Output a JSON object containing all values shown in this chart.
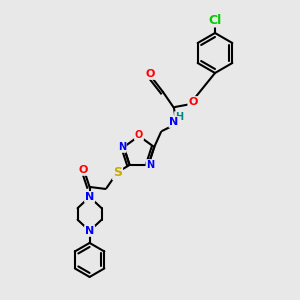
{
  "bg_color": "#e8e8e8",
  "atom_colors": {
    "N": "#0000ff",
    "O": "#ff0000",
    "S": "#ccaa00",
    "Cl": "#00cc00",
    "H": "#008888",
    "C": "#000000"
  },
  "figsize": [
    3.0,
    3.0
  ],
  "dpi": 100
}
